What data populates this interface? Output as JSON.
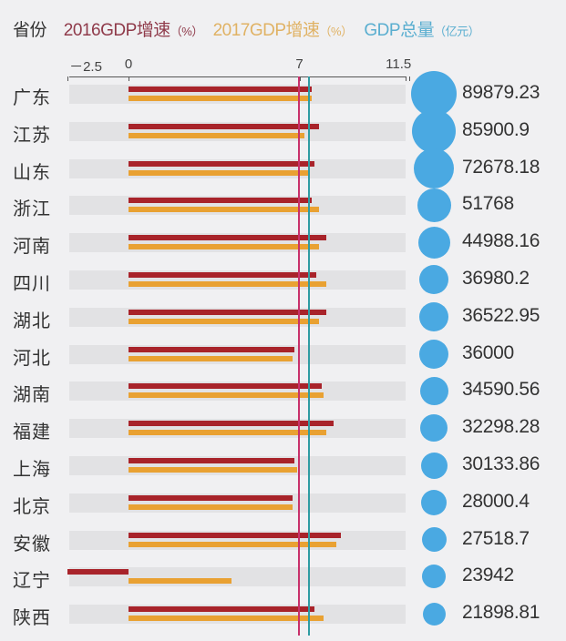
{
  "header": {
    "province": "省份",
    "gdp2016_label": "2016GDP增速",
    "gdp2017_label": "2017GDP增速",
    "gdp_total_label": "GDP总量",
    "pct_unit": "（%）",
    "yuan_unit": "（亿元）"
  },
  "axis": {
    "ticks": [
      {
        "label": "－2.5",
        "value": -2.5
      },
      {
        "label": "0",
        "value": 0
      },
      {
        "label": "7",
        "value": 7
      },
      {
        "label": "11.5",
        "value": 11.5
      }
    ]
  },
  "colors": {
    "growth_2016": "#a8232a",
    "growth_2017": "#e9a132",
    "gdp_bubble": "#4aa9e2",
    "ref_line_red": "#c8306a",
    "ref_line_teal": "#2e9ca2",
    "band": "#e2e2e4",
    "background": "#f0f0f2"
  },
  "chart_data": {
    "type": "bar",
    "title": "",
    "orientation": "horizontal",
    "categories": [
      "广东",
      "江苏",
      "山东",
      "浙江",
      "河南",
      "四川",
      "湖北",
      "河北",
      "湖南",
      "福建",
      "上海",
      "北京",
      "安徽",
      "辽宁",
      "陕西"
    ],
    "series": [
      {
        "name": "2016GDP增速（%）",
        "values": [
          7.5,
          7.8,
          7.6,
          7.5,
          8.1,
          7.7,
          8.1,
          6.8,
          7.9,
          8.4,
          6.8,
          6.7,
          8.7,
          -2.5,
          7.6
        ]
      },
      {
        "name": "2017GDP增速（%）",
        "values": [
          7.5,
          7.2,
          7.4,
          7.8,
          7.8,
          8.1,
          7.8,
          6.7,
          8.0,
          8.1,
          6.9,
          6.7,
          8.5,
          4.2,
          8.0
        ]
      },
      {
        "name": "GDP总量（亿元）",
        "values": [
          89879.23,
          85900.9,
          72678.18,
          51768,
          44988.16,
          36980.2,
          36522.95,
          36000,
          34590.56,
          32298.28,
          30133.86,
          28000.4,
          27518.7,
          23942,
          21898.81
        ]
      }
    ],
    "xlim": [
      -2.5,
      11.5
    ],
    "xticks": [
      -2.5,
      0,
      7,
      11.5
    ],
    "reference_lines": [
      7,
      7.4
    ],
    "legend_position": "top",
    "grid": false
  },
  "rows": [
    {
      "province": "广东",
      "g16": 7.5,
      "g17": 7.5,
      "gdp": "89879.23",
      "d": 50
    },
    {
      "province": "江苏",
      "g16": 7.8,
      "g17": 7.2,
      "gdp": "85900.9",
      "d": 48
    },
    {
      "province": "山东",
      "g16": 7.6,
      "g17": 7.4,
      "gdp": "72678.18",
      "d": 44
    },
    {
      "province": "浙江",
      "g16": 7.5,
      "g17": 7.8,
      "gdp": "51768",
      "d": 37
    },
    {
      "province": "河南",
      "g16": 8.1,
      "g17": 7.8,
      "gdp": "44988.16",
      "d": 35
    },
    {
      "province": "四川",
      "g16": 7.7,
      "g17": 8.1,
      "gdp": "36980.2",
      "d": 32
    },
    {
      "province": "湖北",
      "g16": 8.1,
      "g17": 7.8,
      "gdp": "36522.95",
      "d": 32
    },
    {
      "province": "河北",
      "g16": 6.8,
      "g17": 6.7,
      "gdp": "36000",
      "d": 32
    },
    {
      "province": "湖南",
      "g16": 7.9,
      "g17": 8.0,
      "gdp": "34590.56",
      "d": 31
    },
    {
      "province": "福建",
      "g16": 8.4,
      "g17": 8.1,
      "gdp": "32298.28",
      "d": 30
    },
    {
      "province": "上海",
      "g16": 6.8,
      "g17": 6.9,
      "gdp": "30133.86",
      "d": 29
    },
    {
      "province": "北京",
      "g16": 6.7,
      "g17": 6.7,
      "gdp": "28000.4",
      "d": 28
    },
    {
      "province": "安徽",
      "g16": 8.7,
      "g17": 8.5,
      "gdp": "27518.7",
      "d": 27
    },
    {
      "province": "辽宁",
      "g16": -2.5,
      "g17": 4.2,
      "gdp": "23942",
      "d": 26
    },
    {
      "province": "陕西",
      "g16": 7.6,
      "g17": 8.0,
      "gdp": "21898.81",
      "d": 25
    }
  ]
}
